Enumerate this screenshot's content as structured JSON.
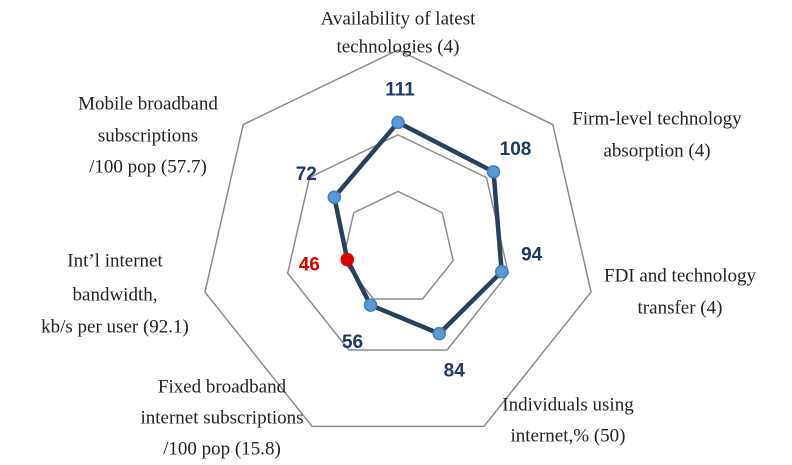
{
  "chart_data": {
    "type": "radar",
    "categories": [
      [
        "Availability of latest",
        "technologies (4)"
      ],
      [
        "Firm-level technology",
        "absorption (4)"
      ],
      [
        "FDI and technology",
        "transfer (4)"
      ],
      [
        "Individuals using",
        "internet,% (50)"
      ],
      [
        "Fixed broadband",
        "internet subscriptions",
        "/100 pop (15.8)"
      ],
      [
        "Int’l internet",
        "bandwidth,",
        "kb/s per user (92.1)"
      ],
      [
        "Mobile broadband",
        "subscriptions",
        "/100 pop (57.7)"
      ]
    ],
    "series": [
      {
        "color": "#2b3f5c",
        "marker_color": "#5b9bd5",
        "values": [
          111,
          108,
          94,
          84,
          56,
          46,
          72
        ]
      }
    ],
    "highlight": {
      "index": 5,
      "color": "#e00000"
    },
    "label_color": "#1f3864",
    "ylim": [
      0,
      175
    ],
    "yticks": [
      50,
      100,
      175
    ],
    "grid": true
  }
}
